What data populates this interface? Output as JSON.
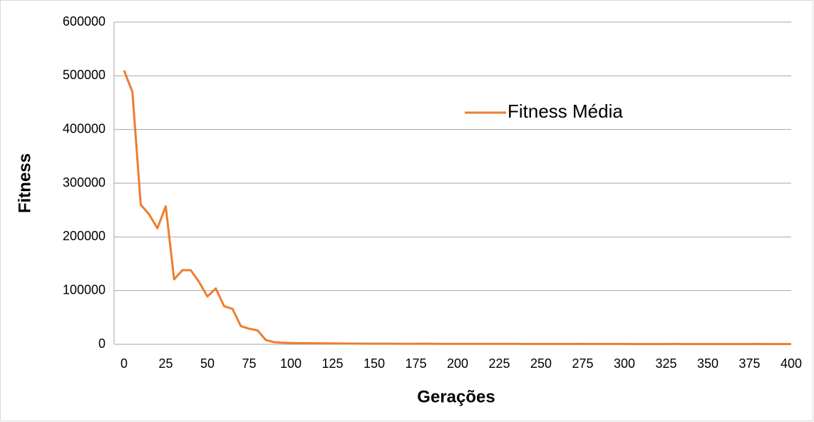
{
  "chart_data": {
    "type": "line",
    "x_label": "Gerações",
    "y_label": "Fitness",
    "x": [
      0,
      5,
      10,
      15,
      20,
      25,
      30,
      35,
      40,
      45,
      50,
      55,
      60,
      65,
      70,
      75,
      80,
      85,
      90,
      95,
      100,
      105,
      110,
      115,
      120,
      125,
      130,
      135,
      140,
      145,
      150,
      155,
      160,
      165,
      170,
      175,
      180,
      185,
      190,
      195,
      200,
      205,
      210,
      215,
      220,
      225,
      230,
      235,
      240,
      245,
      250,
      255,
      260,
      265,
      270,
      275,
      280,
      285,
      290,
      295,
      300,
      305,
      310,
      315,
      320,
      325,
      330,
      335,
      340,
      345,
      350,
      355,
      360,
      365,
      370,
      375,
      380,
      385,
      390,
      395,
      400
    ],
    "series": [
      {
        "name": "Fitness Média",
        "color": "#ed7d31",
        "values": [
          510000,
          470000,
          260000,
          242000,
          216000,
          257000,
          121000,
          138000,
          138000,
          116000,
          89000,
          104000,
          71000,
          66000,
          34000,
          29000,
          26000,
          8000,
          4000,
          3000,
          2500,
          2200,
          2000,
          1800,
          1700,
          1600,
          1500,
          1400,
          1300,
          1200,
          1200,
          1100,
          1100,
          1000,
          1000,
          1000,
          1200,
          1000,
          900,
          900,
          900,
          900,
          800,
          800,
          800,
          800,
          800,
          800,
          700,
          700,
          700,
          700,
          600,
          600,
          600,
          800,
          600,
          600,
          600,
          600,
          600,
          500,
          500,
          500,
          500,
          500,
          600,
          500,
          500,
          500,
          500,
          500,
          500,
          500,
          500,
          500,
          700,
          500,
          500,
          500,
          500
        ]
      }
    ],
    "xlim": [
      -6,
      400
    ],
    "xticks": [
      0,
      25,
      50,
      75,
      100,
      125,
      150,
      175,
      200,
      225,
      250,
      275,
      300,
      325,
      350,
      375,
      400
    ],
    "ylim": [
      0,
      600000
    ],
    "yticks": [
      0,
      100000,
      200000,
      300000,
      400000,
      500000,
      600000
    ],
    "grid": true,
    "legend": "upper right"
  }
}
